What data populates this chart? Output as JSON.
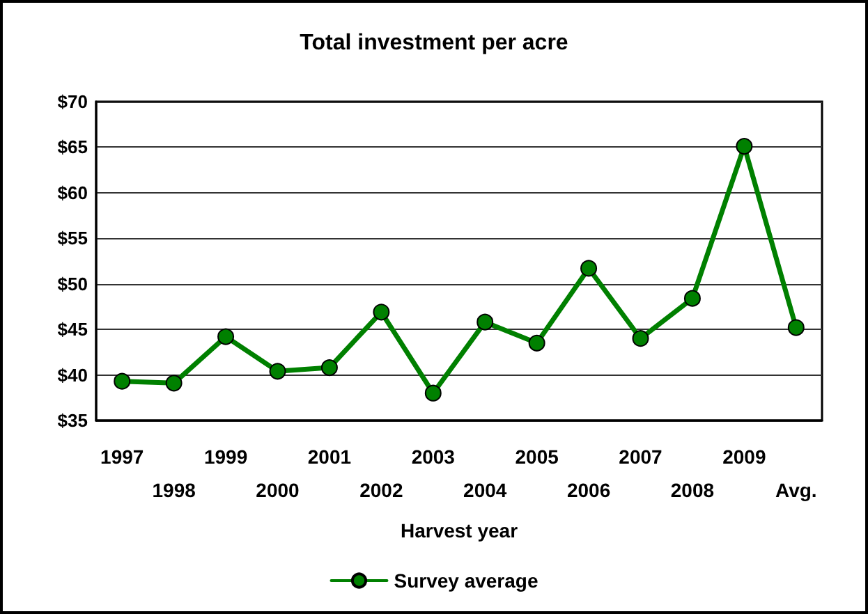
{
  "chart_data": {
    "type": "line",
    "title": "Total investment per acre",
    "xlabel": "Harvest year",
    "categories": [
      "1997",
      "1998",
      "1999",
      "2000",
      "2001",
      "2002",
      "2003",
      "2004",
      "2005",
      "2006",
      "2007",
      "2008",
      "2009",
      "Avg."
    ],
    "series": [
      {
        "name": "Survey average",
        "color": "#008000",
        "values": [
          39.3,
          39.1,
          44.2,
          40.4,
          40.8,
          46.9,
          38.0,
          45.8,
          43.5,
          51.7,
          44.0,
          48.4,
          65.1,
          45.2
        ]
      }
    ],
    "ylim": [
      35,
      70
    ],
    "yticks": [
      {
        "value": 35,
        "label": "$35"
      },
      {
        "value": 40,
        "label": "$40"
      },
      {
        "value": 45,
        "label": "$45"
      },
      {
        "value": 50,
        "label": "$50"
      },
      {
        "value": 55,
        "label": "$55"
      },
      {
        "value": 60,
        "label": "$60"
      },
      {
        "value": 65,
        "label": "$65"
      },
      {
        "value": 70,
        "label": "$70"
      }
    ],
    "grid": "y",
    "legend": "bottom",
    "marker": "circle",
    "line_style": "solid"
  }
}
